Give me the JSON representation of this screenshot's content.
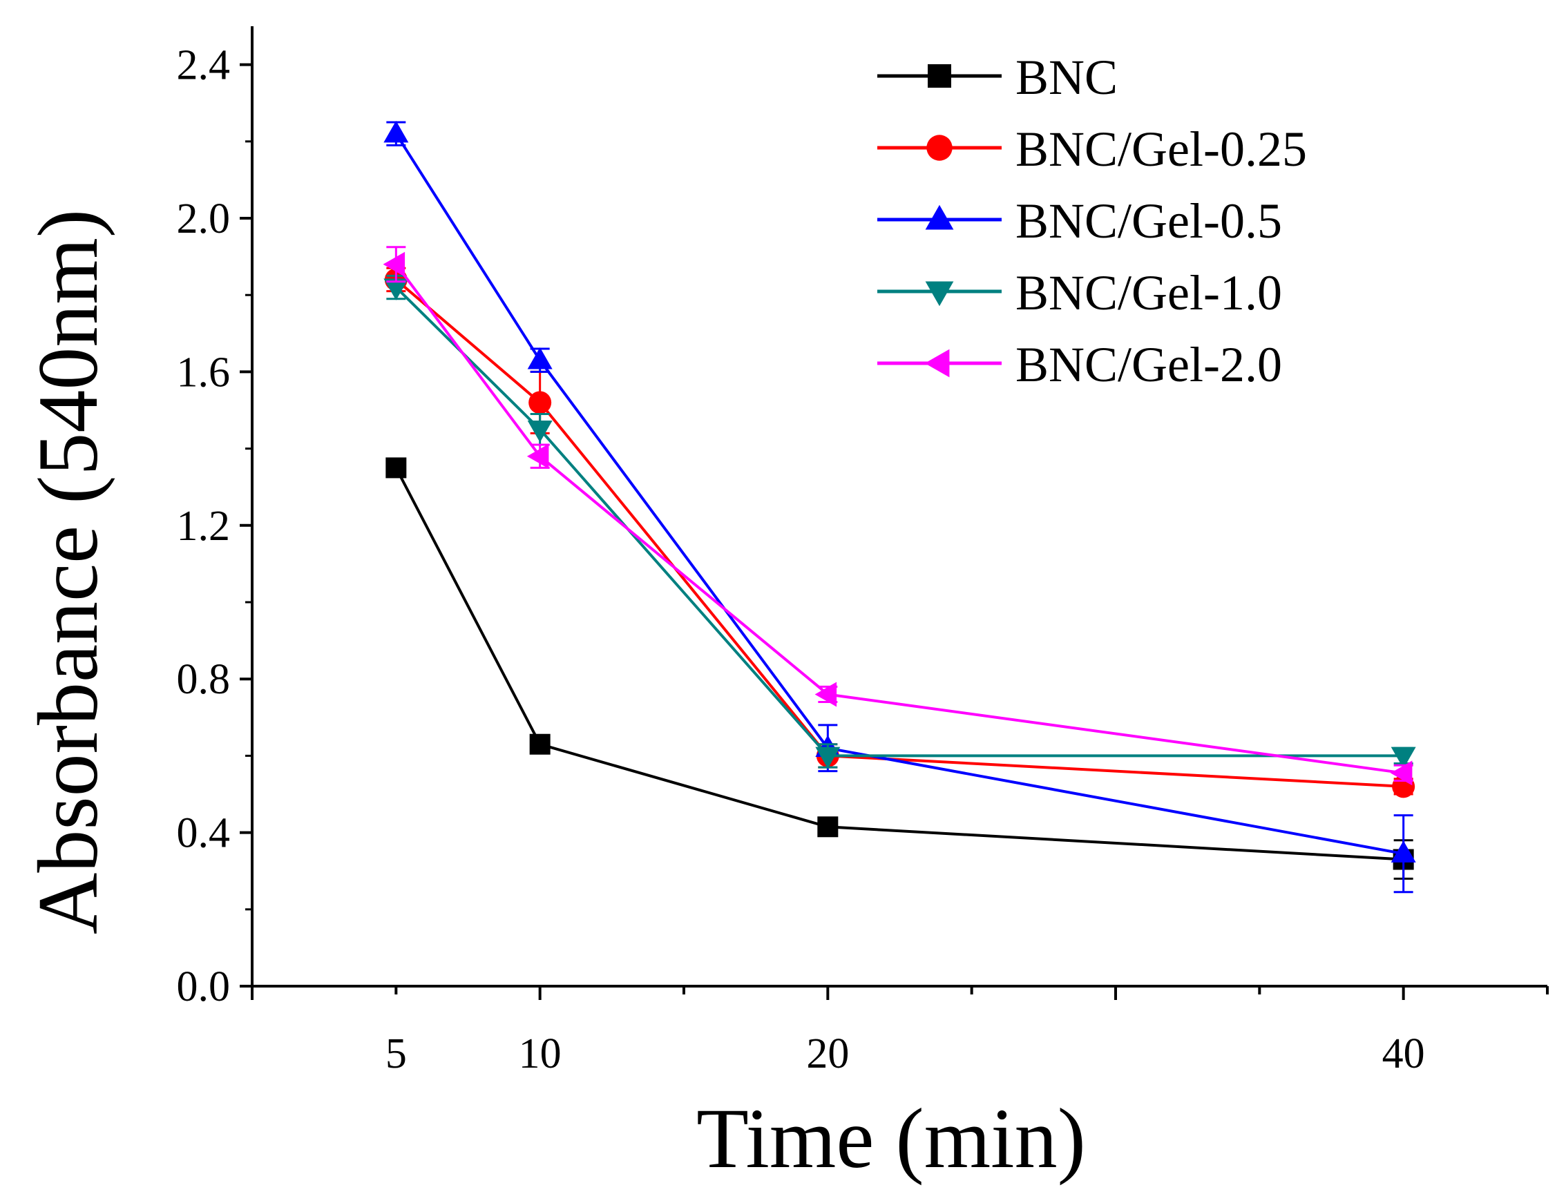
{
  "chart_data": {
    "type": "line",
    "xlabel": "Time (min)",
    "ylabel": "Absorbance (540nm)",
    "xlim": [
      0,
      45
    ],
    "ylim": [
      0,
      2.5
    ],
    "x_ticks": [
      "5",
      "10",
      "20",
      "40"
    ],
    "y_ticks": [
      "0.0",
      "0.4",
      "0.8",
      "1.2",
      "1.6",
      "2.0",
      "2.4"
    ],
    "x": [
      5,
      10,
      20,
      40
    ],
    "legend_position": "top-right",
    "grid": false,
    "series": [
      {
        "name": "BNC",
        "color": "#000000",
        "marker": "square",
        "values": [
          1.35,
          0.63,
          0.415,
          0.33
        ],
        "errors": [
          0.02,
          0.02,
          0.015,
          0.05
        ]
      },
      {
        "name": "BNC/Gel-0.25",
        "color": "#ff0000",
        "marker": "circle",
        "values": [
          1.84,
          1.52,
          0.6,
          0.52
        ],
        "errors": [
          0.03,
          0.08,
          0.03,
          0.02
        ]
      },
      {
        "name": "BNC/Gel-0.5",
        "color": "#0000ff",
        "marker": "triangle-up",
        "values": [
          2.22,
          1.63,
          0.62,
          0.345
        ],
        "errors": [
          0.03,
          0.03,
          0.06,
          0.1
        ]
      },
      {
        "name": "BNC/Gel-1.0",
        "color": "#008080",
        "marker": "triangle-down",
        "values": [
          1.82,
          1.45,
          0.6,
          0.6
        ],
        "errors": [
          0.03,
          0.04,
          0.03,
          0.02
        ]
      },
      {
        "name": "BNC/Gel-2.0",
        "color": "#ff00ff",
        "marker": "triangle-left",
        "values": [
          1.88,
          1.38,
          0.76,
          0.555
        ],
        "errors": [
          0.045,
          0.03,
          0.02,
          0.02
        ]
      }
    ]
  }
}
